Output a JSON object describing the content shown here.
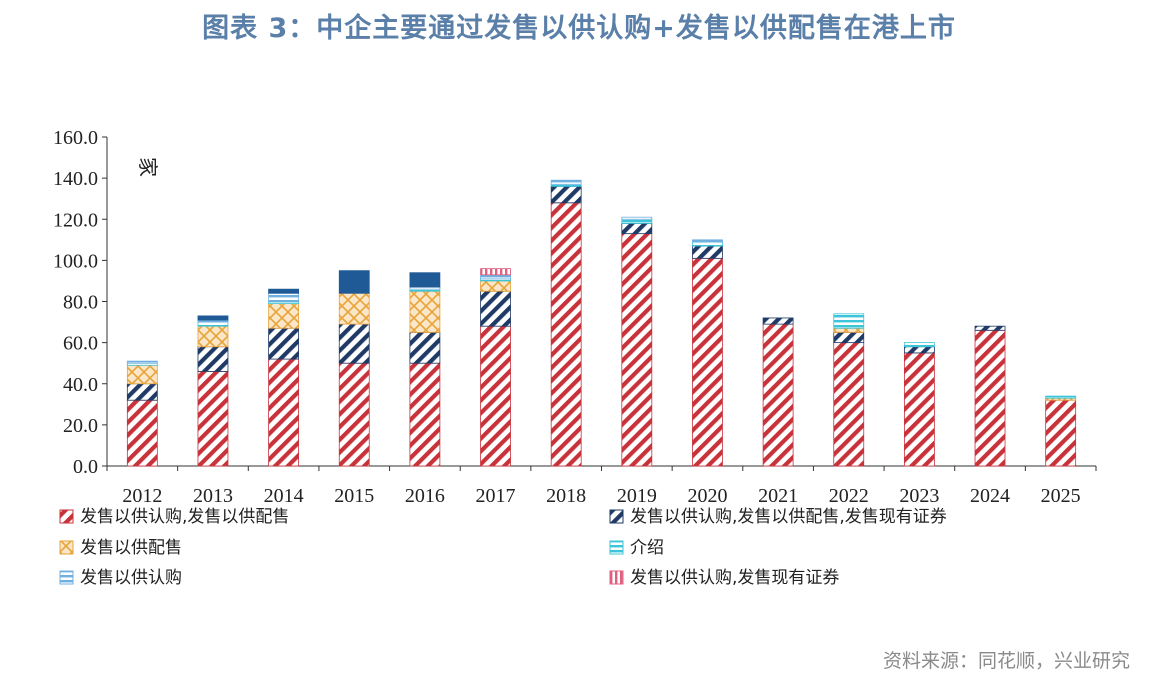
{
  "title": "图表 3：中企主要通过发售以供认购+发售以供配售在港上市",
  "source": "资料来源：同花顺，兴业研究",
  "colors": {
    "title": "#5a7fa8",
    "red": "#c8323a",
    "navy": "#1f3a66",
    "orange": "#e8a23a",
    "cyan": "#3cc4d8",
    "lightblue": "#6fb0e0",
    "pink": "#e06080",
    "darkblue": "#1f5a96"
  },
  "chart_data": {
    "type": "bar",
    "stacked": true,
    "unit_label": "家",
    "ylim": [
      0,
      160
    ],
    "yticks": [
      "0.0",
      "20.0",
      "40.0",
      "60.0",
      "80.0",
      "100.0",
      "120.0",
      "140.0",
      "160.0"
    ],
    "grid": false,
    "legend_position": "bottom",
    "categories": [
      "2012",
      "2013",
      "2014",
      "2015",
      "2016",
      "2017",
      "2018",
      "2019",
      "2020",
      "2021",
      "2022",
      "2023",
      "2024",
      "2025"
    ],
    "series": [
      {
        "name": "发售以供认购,发售以供配售",
        "pattern": "red-diag",
        "values": [
          32,
          46,
          52,
          50,
          50,
          68,
          128,
          113,
          101,
          69,
          60,
          55,
          66,
          32
        ]
      },
      {
        "name": "发售以供认购,发售以供配售,发售现有证券",
        "pattern": "navy-diag",
        "values": [
          8,
          12,
          15,
          19,
          15,
          17,
          8,
          5,
          6,
          3,
          5,
          3,
          2,
          0
        ]
      },
      {
        "name": "发售以供配售",
        "pattern": "orange-cross",
        "values": [
          9,
          10,
          12,
          15,
          20,
          5,
          0,
          0,
          0,
          0,
          2,
          0,
          0,
          1
        ]
      },
      {
        "name": "介绍",
        "pattern": "cyan-h",
        "values": [
          1,
          2,
          1,
          0,
          1,
          1,
          1,
          2,
          2,
          0,
          7,
          2,
          0,
          1
        ]
      },
      {
        "name": "发售以供认购",
        "pattern": "lightblue-h",
        "values": [
          1,
          1,
          4,
          0,
          1,
          2,
          2,
          1,
          1,
          0,
          0,
          0,
          0,
          0
        ]
      },
      {
        "name": "发售以供认购,发售现有证券",
        "pattern": "pink-v",
        "values": [
          0,
          0,
          0,
          0,
          0,
          3,
          0,
          0,
          0,
          0,
          0,
          0,
          0,
          0
        ]
      },
      {
        "name": "",
        "pattern": "darkblue-solid",
        "values": [
          0,
          2,
          2,
          11,
          7,
          0,
          0,
          0,
          0,
          0,
          0,
          0,
          0,
          0
        ]
      }
    ]
  }
}
